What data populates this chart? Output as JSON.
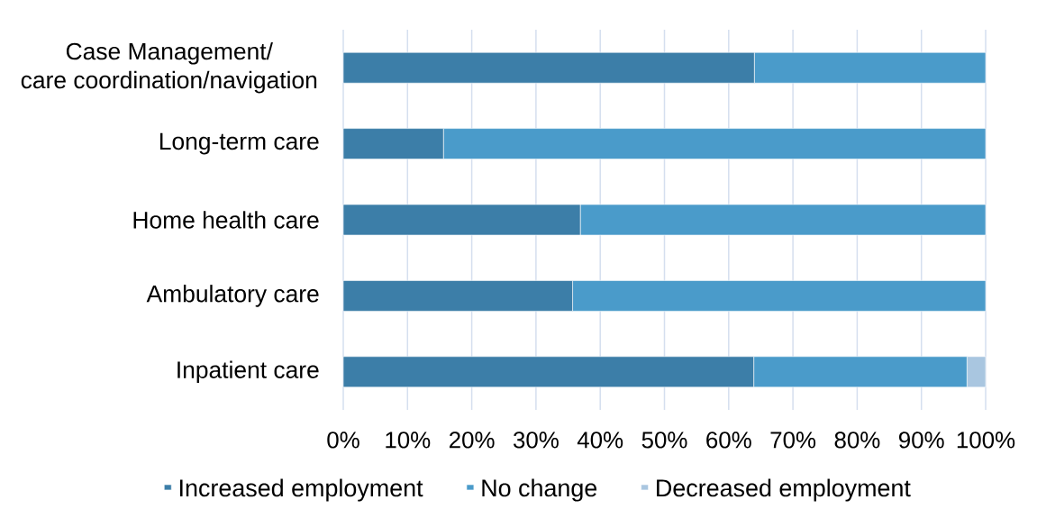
{
  "chart_data": {
    "type": "bar",
    "orientation": "horizontal",
    "stacked": true,
    "categories": [
      "Case Management/ care coordination/navigation",
      "Long-term care",
      "Home health care",
      "Ambulatory care",
      "Inpatient care"
    ],
    "series": [
      {
        "name": "Increased employment",
        "color": "#3c7ea8",
        "values": [
          64,
          15.6,
          36.9,
          35.7,
          63.9
        ]
      },
      {
        "name": "No change",
        "color": "#4a9bca",
        "values": [
          36,
          84.4,
          63.1,
          64.3,
          33.2
        ]
      },
      {
        "name": "Decreased employment",
        "color": "#a9c6e0",
        "values": [
          null,
          null,
          null,
          null,
          2.9
        ]
      }
    ],
    "xlim": [
      0,
      100
    ],
    "xticks": [
      {
        "value": 0,
        "label": "0%"
      },
      {
        "value": 10,
        "label": "10%"
      },
      {
        "value": 20,
        "label": "20%"
      },
      {
        "value": 30,
        "label": "30%"
      },
      {
        "value": 40,
        "label": "40%"
      },
      {
        "value": 50,
        "label": "50%"
      },
      {
        "value": 60,
        "label": "60%"
      },
      {
        "value": 70,
        "label": "70%"
      },
      {
        "value": 80,
        "label": "80%"
      },
      {
        "value": 90,
        "label": "90%"
      },
      {
        "value": 100,
        "label": "100%"
      }
    ],
    "grid": "x",
    "legend": "bottom"
  }
}
